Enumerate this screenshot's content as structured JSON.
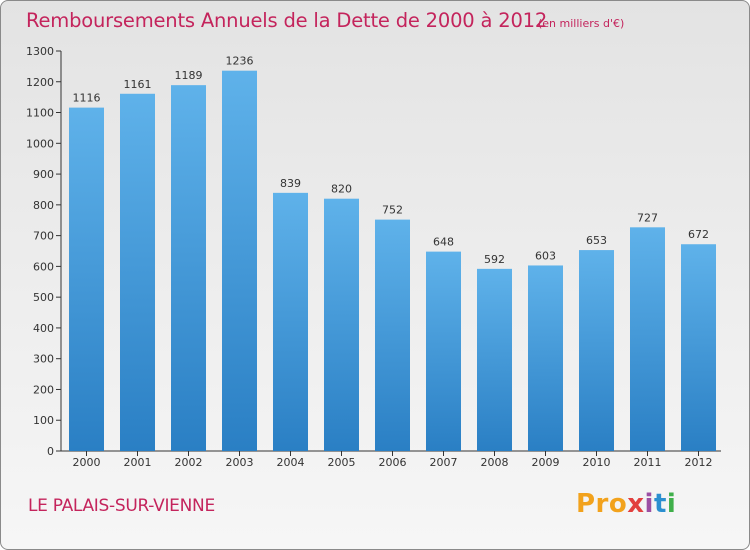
{
  "title": "Remboursements Annuels de la Dette de 2000 à 2012",
  "unit_note": "(en milliers d'€)",
  "commune": "LE PALAIS-SUR-VIENNE",
  "logo": {
    "text": "Proxiti",
    "letters": [
      "Pro",
      "x",
      "i",
      "t",
      "i"
    ]
  },
  "colors": {
    "title": "#c4245c",
    "bar_top": "#5fb2ea",
    "bar_bottom": "#2a7fc4",
    "axis": "#333333"
  },
  "chart_data": {
    "type": "bar",
    "categories": [
      "2000",
      "2001",
      "2002",
      "2003",
      "2004",
      "2005",
      "2006",
      "2007",
      "2008",
      "2009",
      "2010",
      "2011",
      "2012"
    ],
    "values": [
      1116,
      1161,
      1189,
      1236,
      839,
      820,
      752,
      648,
      592,
      603,
      653,
      727,
      672
    ],
    "data_labels": [
      "1116",
      "1161",
      "1189",
      "1236",
      "839",
      "820",
      "752",
      "648",
      "592",
      "603",
      "653",
      "727",
      "672"
    ],
    "ylim": [
      0,
      1300
    ],
    "yticks": [
      0,
      100,
      200,
      300,
      400,
      500,
      600,
      700,
      800,
      900,
      1000,
      1100,
      1200,
      1300
    ],
    "grid": false,
    "xlabel": "",
    "ylabel": ""
  }
}
